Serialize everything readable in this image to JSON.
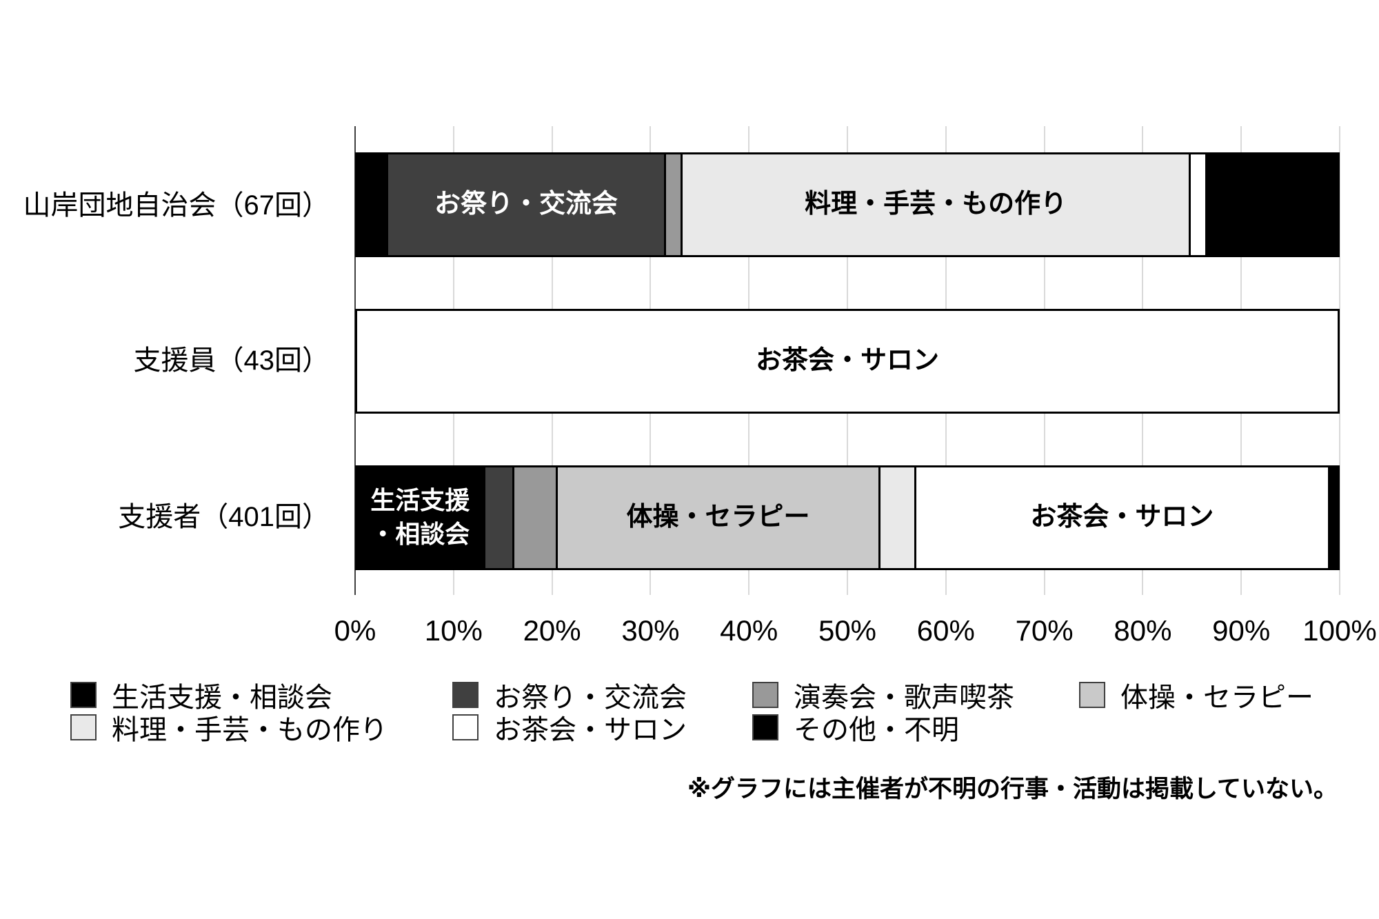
{
  "chart_data": {
    "type": "bar",
    "orientation": "horizontal",
    "stacked": true,
    "unit": "percent",
    "xlim": [
      0,
      100
    ],
    "grid": true,
    "x_ticks": [
      "0%",
      "10%",
      "20%",
      "30%",
      "40%",
      "50%",
      "60%",
      "70%",
      "80%",
      "90%",
      "100%"
    ],
    "categories": [
      "山岸団地自治会（67回）",
      "支援員（43回）",
      "支援者（401回）"
    ],
    "series": [
      {
        "name": "生活支援・相談会",
        "color": "#000000",
        "text_color": "#ffffff",
        "values": [
          3.0,
          0,
          13.0
        ]
      },
      {
        "name": "お祭り・交流会",
        "color": "#404040",
        "text_color": "#ffffff",
        "values": [
          28.4,
          0,
          2.8
        ]
      },
      {
        "name": "演奏会・歌声喫茶",
        "color": "#999999",
        "text_color": "#000000",
        "values": [
          1.5,
          0,
          4.3
        ]
      },
      {
        "name": "体操・セラピー",
        "color": "#c9c9c9",
        "text_color": "#000000",
        "values": [
          0,
          0,
          33.1
        ]
      },
      {
        "name": "料理・手芸・もの作り",
        "color": "#e9e9e9",
        "text_color": "#000000",
        "values": [
          52.2,
          0,
          3.5
        ]
      },
      {
        "name": "お茶会・サロン",
        "color": "#ffffff",
        "text_color": "#000000",
        "values": [
          1.5,
          100,
          42.5
        ]
      },
      {
        "name": "その他・不明",
        "color": "#000000",
        "text_color": "#ffffff",
        "values": [
          13.4,
          0,
          0.8
        ]
      }
    ],
    "bar_labels": [
      [
        "お祭り・交流会",
        "料理・手芸・もの作り"
      ],
      [
        "お茶会・サロン"
      ],
      [
        "生活支援・相談会",
        "体操・セラピー",
        "お茶会・サロン"
      ]
    ],
    "label_wrap": {
      "生活支援・相談会": [
        "生活支援",
        "・相談会"
      ]
    },
    "legend_rows": [
      [
        "生活支援・相談会",
        "お祭り・交流会",
        "演奏会・歌声喫茶",
        "体操・セラピー"
      ],
      [
        "料理・手芸・もの作り",
        "お茶会・サロン",
        "その他・不明"
      ]
    ],
    "legend_position": "bottom",
    "note": "※グラフには主催者が不明の行事・活動は掲載していない。"
  }
}
